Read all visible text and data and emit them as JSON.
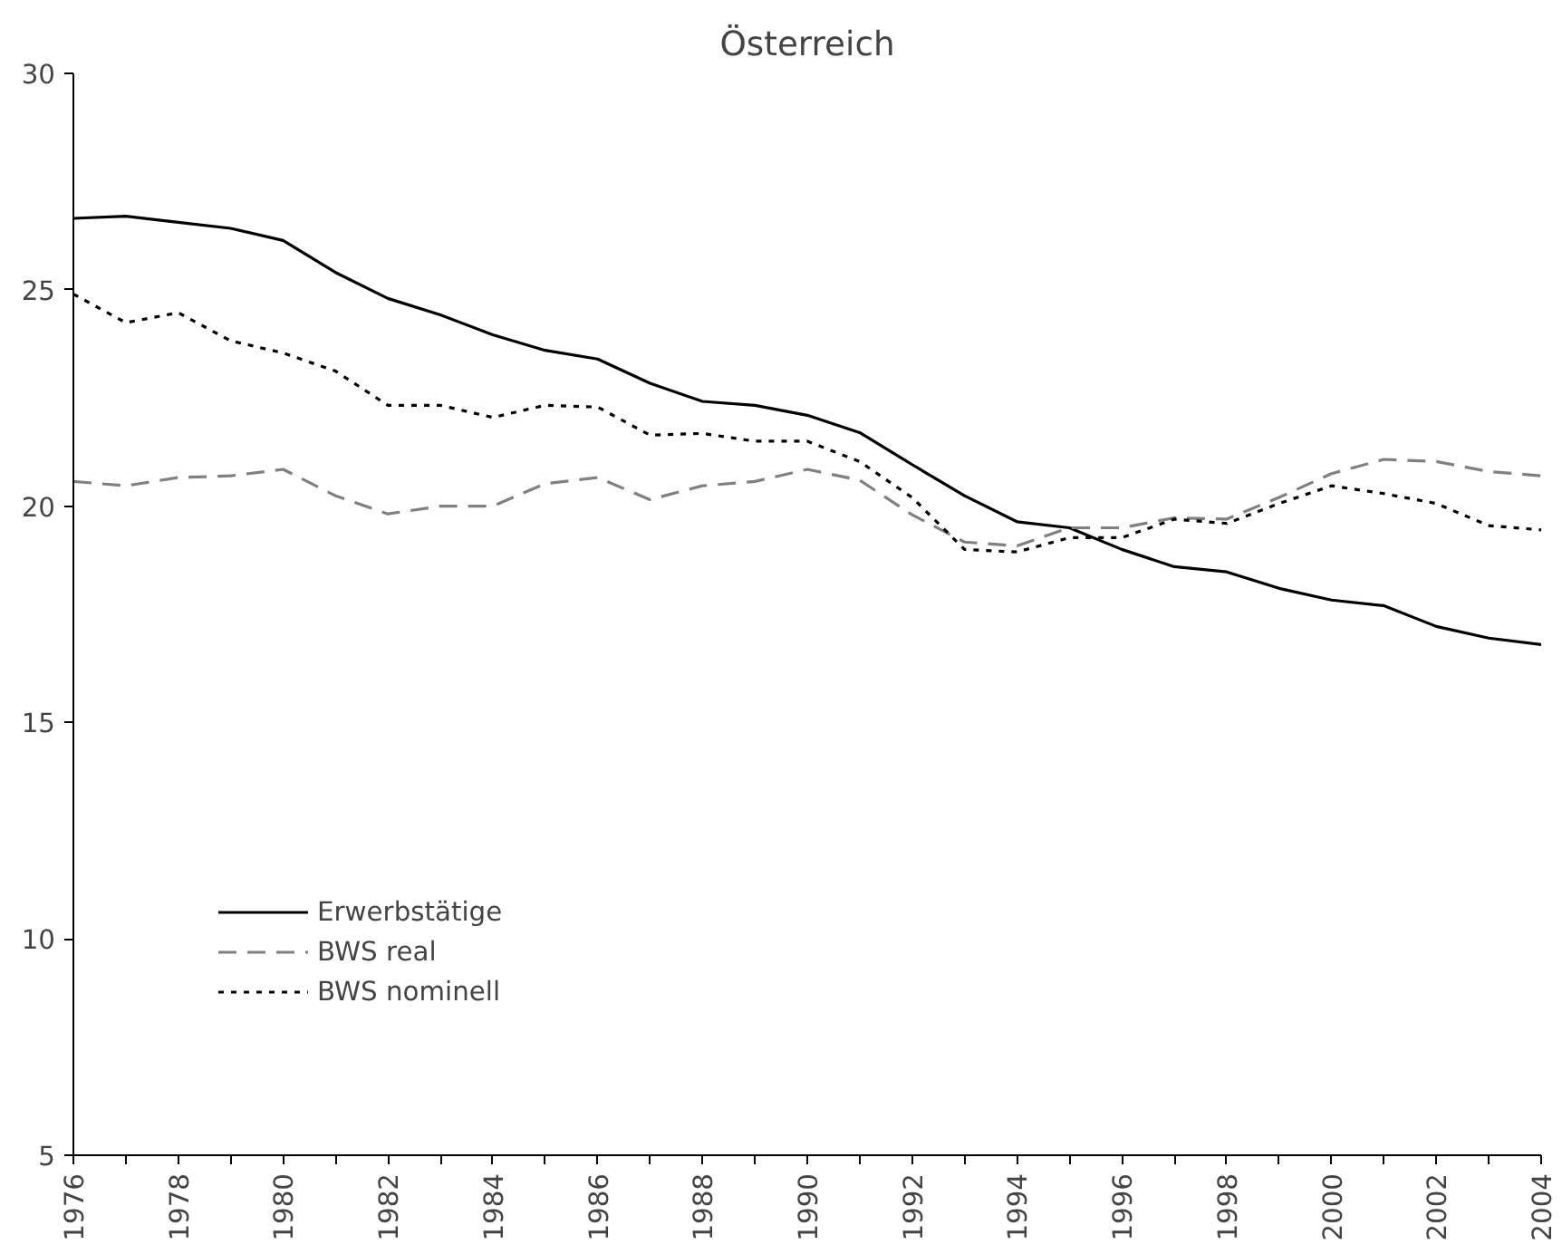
{
  "chart_data": {
    "type": "line",
    "title": "Österreich",
    "x": [
      1976,
      1977,
      1978,
      1979,
      1980,
      1981,
      1982,
      1983,
      1984,
      1985,
      1986,
      1987,
      1988,
      1989,
      1990,
      1991,
      1992,
      1993,
      1994,
      1995,
      1996,
      1997,
      1998,
      1999,
      2000,
      2001,
      2002,
      2003,
      2004
    ],
    "series": [
      {
        "name": "Erwerbstätige",
        "color": "#000000",
        "line_style": "solid",
        "values": [
          26.65,
          26.7,
          26.56,
          26.42,
          26.14,
          25.4,
          24.8,
          24.42,
          23.96,
          23.6,
          23.4,
          22.84,
          22.42,
          22.33,
          22.1,
          21.7,
          20.96,
          20.24,
          19.64,
          19.5,
          19.0,
          18.6,
          18.48,
          18.1,
          17.83,
          17.7,
          17.22,
          16.95,
          16.8
        ]
      },
      {
        "name": "BWS real",
        "color": "#808080",
        "line_style": "dashed",
        "values": [
          20.57,
          20.47,
          20.66,
          20.7,
          20.85,
          20.24,
          19.82,
          20.0,
          20.0,
          20.52,
          20.66,
          20.15,
          20.47,
          20.57,
          20.85,
          20.6,
          19.8,
          19.17,
          19.08,
          19.5,
          19.5,
          19.73,
          19.7,
          20.2,
          20.75,
          21.08,
          21.03,
          20.8,
          20.7
        ]
      },
      {
        "name": "BWS nominell",
        "color": "#000000",
        "line_style": "dotted",
        "values": [
          24.9,
          24.24,
          24.47,
          23.82,
          23.54,
          23.12,
          22.33,
          22.33,
          22.05,
          22.33,
          22.29,
          21.64,
          21.68,
          21.5,
          21.5,
          21.03,
          20.2,
          19.0,
          18.94,
          19.27,
          19.27,
          19.7,
          19.6,
          20.06,
          20.47,
          20.29,
          20.06,
          19.55,
          19.45
        ]
      }
    ],
    "xlim": [
      1976,
      2004
    ],
    "xticks": [
      1976,
      {
        "value": 1977,
        "label": null
      },
      1978,
      {
        "value": 1979,
        "label": null
      },
      1980,
      {
        "value": 1981,
        "label": null
      },
      1982,
      {
        "value": 1983,
        "label": null
      },
      1984,
      {
        "value": 1985,
        "label": null
      },
      1986,
      {
        "value": 1987,
        "label": null
      },
      1988,
      {
        "value": 1989,
        "label": null
      },
      1990,
      {
        "value": 1991,
        "label": null
      },
      1992,
      {
        "value": 1993,
        "label": null
      },
      1994,
      {
        "value": 1995,
        "label": null
      },
      1996,
      {
        "value": 1997,
        "label": null
      },
      1998,
      {
        "value": 1999,
        "label": null
      },
      2000,
      {
        "value": 2001,
        "label": null
      },
      2002,
      {
        "value": 2003,
        "label": null
      },
      2004
    ],
    "ylim": [
      5,
      30
    ],
    "yticks": [
      5,
      10,
      15,
      20,
      25,
      30
    ],
    "grid": false,
    "legend": "bottom left"
  }
}
